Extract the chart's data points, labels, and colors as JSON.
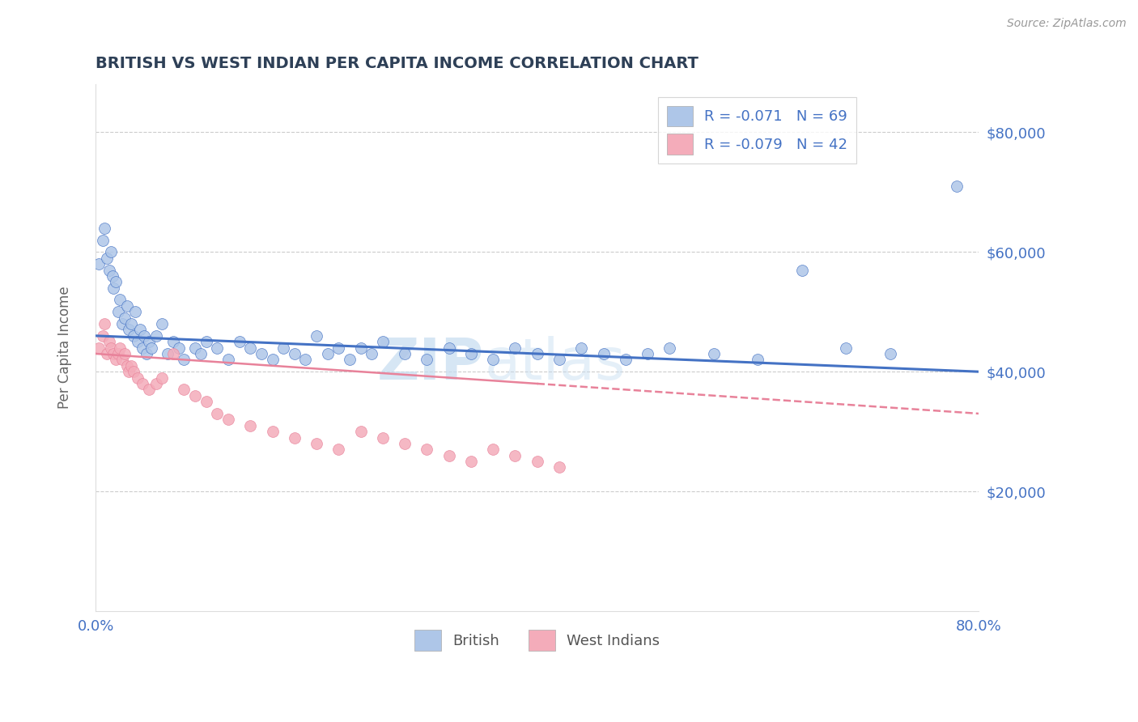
{
  "title": "BRITISH VS WEST INDIAN PER CAPITA INCOME CORRELATION CHART",
  "source_text": "Source: ZipAtlas.com",
  "ylabel": "Per Capita Income",
  "xlim": [
    0.0,
    0.8
  ],
  "ylim": [
    0,
    88000
  ],
  "title_color": "#2E4057",
  "axis_color": "#4472C4",
  "british_color": "#AEC6E8",
  "west_indian_color": "#F4ACBA",
  "british_line_color": "#4472C4",
  "west_indian_line_color": "#E8829A",
  "watermark_text": "ZIP",
  "watermark_text2": "atlas",
  "british_R": -0.071,
  "british_N": 69,
  "west_indian_R": -0.079,
  "west_indian_N": 42,
  "british_trend": [
    46000,
    40000
  ],
  "west_indian_trend": [
    43000,
    33000
  ],
  "british_scatter_x": [
    0.003,
    0.006,
    0.008,
    0.01,
    0.012,
    0.014,
    0.015,
    0.016,
    0.018,
    0.02,
    0.022,
    0.024,
    0.026,
    0.028,
    0.03,
    0.032,
    0.034,
    0.036,
    0.038,
    0.04,
    0.042,
    0.044,
    0.046,
    0.048,
    0.05,
    0.055,
    0.06,
    0.065,
    0.07,
    0.075,
    0.08,
    0.09,
    0.095,
    0.1,
    0.11,
    0.12,
    0.13,
    0.14,
    0.15,
    0.16,
    0.17,
    0.18,
    0.19,
    0.2,
    0.21,
    0.22,
    0.23,
    0.24,
    0.25,
    0.26,
    0.28,
    0.3,
    0.32,
    0.34,
    0.36,
    0.38,
    0.4,
    0.42,
    0.44,
    0.46,
    0.48,
    0.5,
    0.52,
    0.56,
    0.6,
    0.64,
    0.68,
    0.72,
    0.78
  ],
  "british_scatter_y": [
    58000,
    62000,
    64000,
    59000,
    57000,
    60000,
    56000,
    54000,
    55000,
    50000,
    52000,
    48000,
    49000,
    51000,
    47000,
    48000,
    46000,
    50000,
    45000,
    47000,
    44000,
    46000,
    43000,
    45000,
    44000,
    46000,
    48000,
    43000,
    45000,
    44000,
    42000,
    44000,
    43000,
    45000,
    44000,
    42000,
    45000,
    44000,
    43000,
    42000,
    44000,
    43000,
    42000,
    46000,
    43000,
    44000,
    42000,
    44000,
    43000,
    45000,
    43000,
    42000,
    44000,
    43000,
    42000,
    44000,
    43000,
    42000,
    44000,
    43000,
    42000,
    43000,
    44000,
    43000,
    42000,
    57000,
    44000,
    43000,
    71000
  ],
  "west_indian_scatter_x": [
    0.003,
    0.006,
    0.008,
    0.01,
    0.012,
    0.014,
    0.016,
    0.018,
    0.02,
    0.022,
    0.024,
    0.026,
    0.028,
    0.03,
    0.032,
    0.034,
    0.038,
    0.042,
    0.048,
    0.055,
    0.06,
    0.07,
    0.08,
    0.09,
    0.1,
    0.11,
    0.12,
    0.14,
    0.16,
    0.18,
    0.2,
    0.22,
    0.24,
    0.26,
    0.28,
    0.3,
    0.32,
    0.34,
    0.36,
    0.38,
    0.4,
    0.42
  ],
  "west_indian_scatter_y": [
    44000,
    46000,
    48000,
    43000,
    45000,
    44000,
    43000,
    42000,
    43000,
    44000,
    42000,
    43000,
    41000,
    40000,
    41000,
    40000,
    39000,
    38000,
    37000,
    38000,
    39000,
    43000,
    37000,
    36000,
    35000,
    33000,
    32000,
    31000,
    30000,
    29000,
    28000,
    27000,
    30000,
    29000,
    28000,
    27000,
    26000,
    25000,
    27000,
    26000,
    25000,
    24000
  ]
}
